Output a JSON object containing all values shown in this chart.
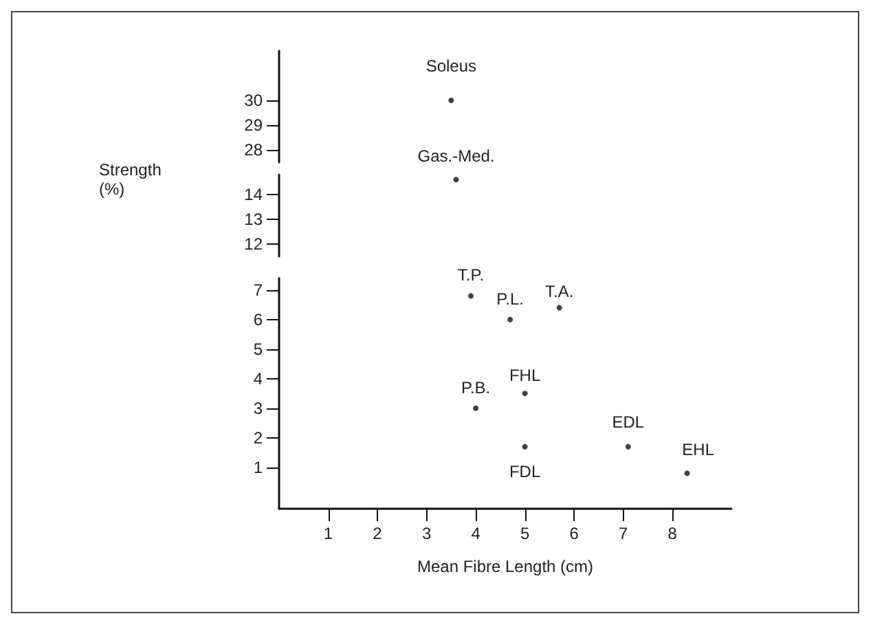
{
  "chart_data": [
    {
      "type": "scatter",
      "x": [
        3.5
      ],
      "values": [
        30
      ],
      "color": "#111111",
      "xlim": [
        0,
        8
      ],
      "xticks": [
        1,
        2,
        3,
        4,
        5,
        6,
        7,
        8
      ],
      "ylim": [
        27.5,
        32
      ],
      "yticks": [
        28,
        29,
        30
      ],
      "tick_labels": "y",
      "marker": "circle",
      "annotations": [
        {
          "text": "Soleus",
          "x": 3.5,
          "y": 30
        }
      ]
    },
    {
      "type": "scatter",
      "x": [
        3.6
      ],
      "values": [
        14.6
      ],
      "color": "#111111",
      "xlim": [
        0,
        8
      ],
      "xticks": [
        1,
        2,
        3,
        4,
        5,
        6,
        7,
        8
      ],
      "ylim": [
        11.5,
        14.8
      ],
      "yticks": [
        12,
        13,
        14
      ],
      "tick_labels": "y",
      "marker": "circle",
      "ylabel": "Strength (%)",
      "annotations": [
        {
          "text": "Gas.-Med.",
          "x": 3.6,
          "y": 14.6
        }
      ]
    },
    {
      "type": "scatter",
      "x": [
        3.9,
        4.7,
        5.7,
        4.0,
        5.0,
        5.0,
        7.1,
        8.3
      ],
      "values": [
        6.8,
        6.0,
        6.4,
        3.0,
        3.5,
        1.7,
        1.7,
        0.8
      ],
      "color": "#111111",
      "xlim": [
        0,
        9.2
      ],
      "xticks": [
        1,
        2,
        3,
        4,
        5,
        6,
        7,
        8
      ],
      "ylim": [
        -0.4,
        7.4
      ],
      "yticks": [
        1,
        2,
        3,
        4,
        5,
        6,
        7
      ],
      "marker": "circle",
      "xlabel": "Mean Fibre Length (cm)",
      "annotations": [
        {
          "text": "T.P.",
          "x": 3.9,
          "y": 6.8
        },
        {
          "text": "P.L.",
          "x": 4.7,
          "y": 6.0
        },
        {
          "text": "T.A.",
          "x": 5.7,
          "y": 6.4
        },
        {
          "text": "P.B.",
          "x": 4.0,
          "y": 3.0
        },
        {
          "text": "FHL",
          "x": 5.0,
          "y": 3.5
        },
        {
          "text": "FDL",
          "x": 5.0,
          "y": 1.7
        },
        {
          "text": "EDL",
          "x": 7.1,
          "y": 1.7
        },
        {
          "text": "EHL",
          "x": 8.3,
          "y": 0.8
        }
      ]
    }
  ]
}
